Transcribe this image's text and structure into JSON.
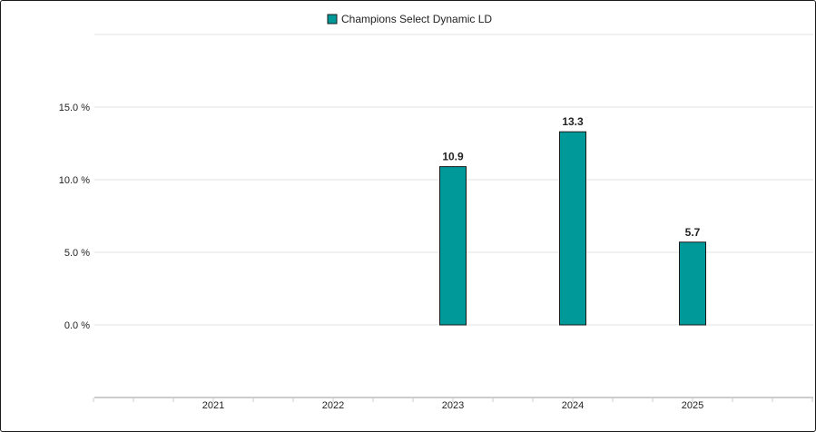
{
  "chart_data": {
    "type": "bar",
    "categories": [
      "2021",
      "2022",
      "2023",
      "2024",
      "2025"
    ],
    "series": [
      {
        "name": "Champions Select Dynamic LD",
        "values": [
          null,
          null,
          10.9,
          13.3,
          5.7
        ]
      }
    ],
    "data_labels": [
      "",
      "",
      "10.9",
      "13.3",
      "5.7"
    ],
    "y_ticks": [
      0,
      5,
      10,
      15
    ],
    "y_tick_labels": [
      "0.0 %",
      "5.0 %",
      "10.0 %",
      "15.0 %"
    ],
    "ylim": [
      -5,
      20
    ],
    "grid": true,
    "legend_position": "top-center",
    "colors": {
      "bar": "#00999a",
      "bar_stroke": "#1a1a1a",
      "grid": "#e3e3e3",
      "axis": "#cccccc"
    }
  }
}
